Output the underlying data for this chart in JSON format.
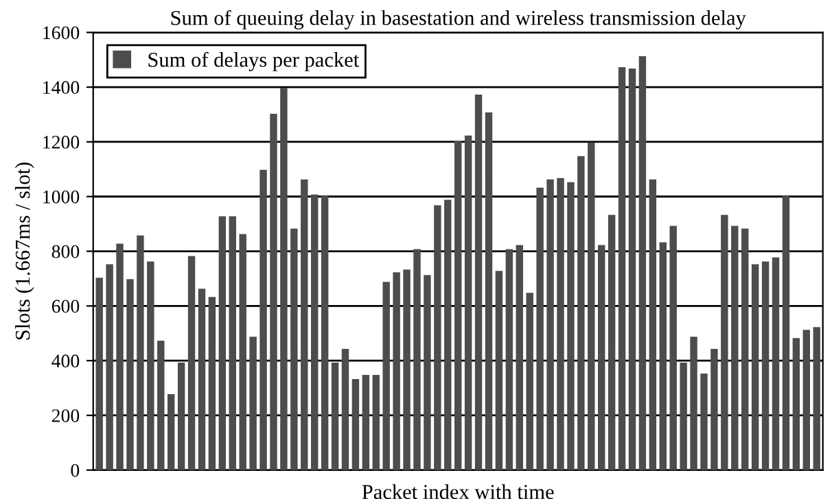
{
  "chart_data": {
    "type": "bar",
    "title": "Sum of queuing delay in basestation and wireless transmission delay",
    "xlabel": "Packet index with time",
    "ylabel": "Slots (1.667ms / slot)",
    "categories": [
      null,
      null,
      null,
      null,
      null,
      null,
      null,
      null,
      null,
      null,
      null,
      null,
      null,
      null,
      null,
      null,
      null,
      null,
      null,
      null,
      null,
      null,
      null,
      null,
      null,
      null,
      null,
      null,
      null,
      null,
      null,
      null,
      null,
      null,
      null,
      null,
      null,
      null,
      null,
      null,
      null,
      null,
      null,
      null,
      null,
      null,
      null,
      null,
      null,
      null,
      null,
      null,
      null,
      null,
      null,
      null,
      null,
      null,
      null,
      null,
      null,
      null,
      null,
      null,
      null,
      null,
      null,
      null,
      null,
      null,
      null
    ],
    "series": [
      {
        "name": "Sum of delays per packet",
        "color": "#4d4d4d",
        "values": [
          700,
          750,
          825,
          695,
          855,
          760,
          470,
          275,
          390,
          780,
          660,
          630,
          925,
          925,
          860,
          485,
          1095,
          1300,
          1395,
          880,
          1060,
          1005,
          1000,
          390,
          440,
          330,
          345,
          345,
          685,
          720,
          730,
          805,
          710,
          965,
          985,
          1200,
          1220,
          1370,
          1305,
          725,
          805,
          820,
          645,
          1030,
          1060,
          1065,
          1050,
          1145,
          1195,
          820,
          930,
          1470,
          1465,
          1510,
          1060,
          830,
          890,
          390,
          485,
          350,
          440,
          930,
          890,
          880,
          750,
          760,
          775,
          1000,
          480,
          510,
          520
        ]
      }
    ],
    "ylim": [
      0,
      1600
    ],
    "yticks": [
      0,
      200,
      400,
      600,
      800,
      1000,
      1200,
      1400,
      1600
    ],
    "grid": "y",
    "legend": "top left"
  }
}
